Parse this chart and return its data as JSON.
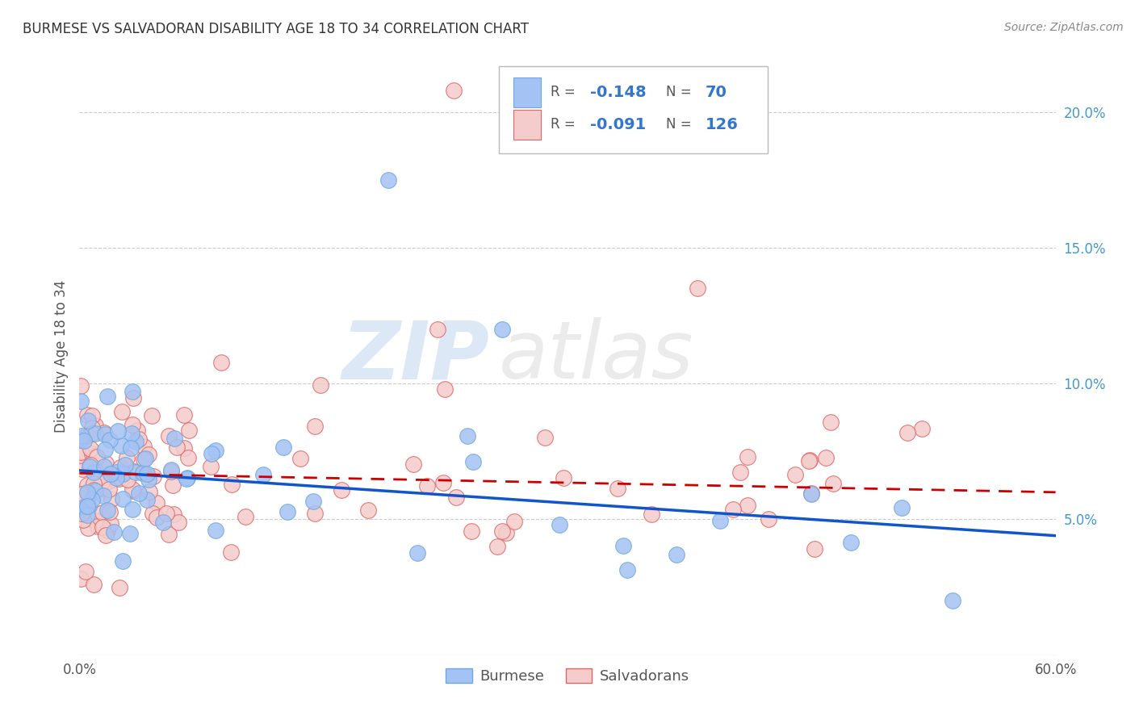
{
  "title": "BURMESE VS SALVADORAN DISABILITY AGE 18 TO 34 CORRELATION CHART",
  "source": "Source: ZipAtlas.com",
  "ylabel": "Disability Age 18 to 34",
  "xlim": [
    0.0,
    0.6
  ],
  "ylim": [
    0.0,
    0.22
  ],
  "xtick_vals": [
    0.0,
    0.1,
    0.2,
    0.3,
    0.4,
    0.5,
    0.6
  ],
  "xtick_labels": [
    "0.0%",
    "",
    "",
    "",
    "",
    "",
    "60.0%"
  ],
  "ytick_vals": [
    0.05,
    0.1,
    0.15,
    0.2
  ],
  "ytick_labels": [
    "5.0%",
    "10.0%",
    "15.0%",
    "20.0%"
  ],
  "burmese_color": "#a4c2f4",
  "burmese_edge": "#6fa8dc",
  "salvadoran_color": "#f4cccc",
  "salvadoran_edge": "#e06666",
  "burmese_line_color": "#1155cc",
  "salvadoran_line_color": "#cc0000",
  "burmese_R": -0.148,
  "burmese_N": 70,
  "salvadoran_R": -0.091,
  "salvadoran_N": 126,
  "legend_label1": "Burmese",
  "legend_label2": "Salvadorans",
  "watermark_zip": "ZIP",
  "watermark_atlas": "atlas",
  "grid_color": "#cccccc",
  "burmese_trend_x0": 0.0,
  "burmese_trend_y0": 0.068,
  "burmese_trend_x1": 0.6,
  "burmese_trend_y1": 0.044,
  "salvadoran_trend_x0": 0.0,
  "salvadoran_trend_y0": 0.067,
  "salvadoran_trend_x1": 0.6,
  "salvadoran_trend_y1": 0.06
}
